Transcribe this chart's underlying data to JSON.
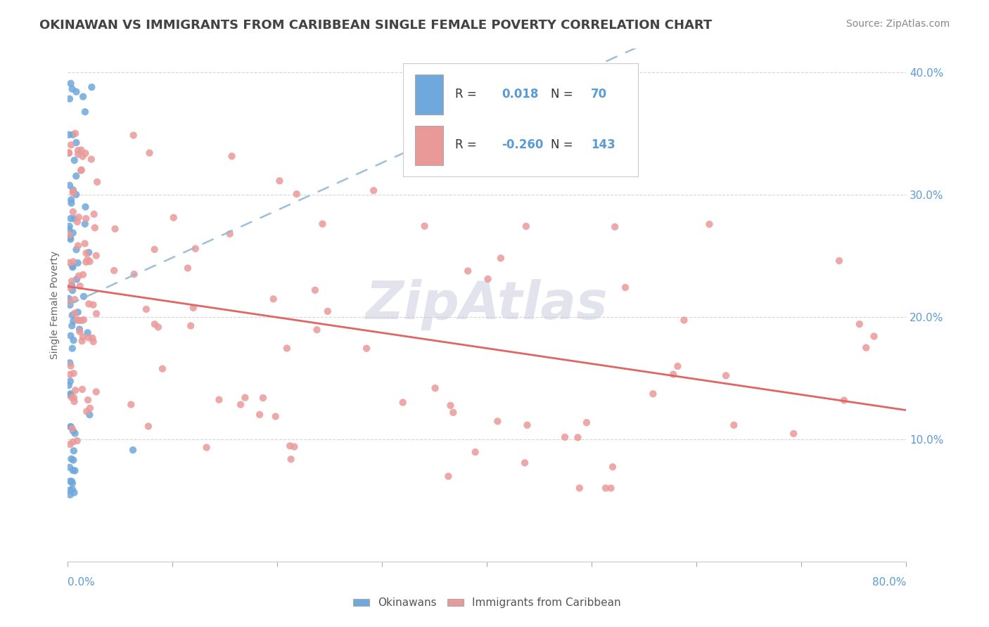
{
  "title": "OKINAWAN VS IMMIGRANTS FROM CARIBBEAN SINGLE FEMALE POVERTY CORRELATION CHART",
  "source": "Source: ZipAtlas.com",
  "ylabel": "Single Female Poverty",
  "legend_R_blue": "0.018",
  "legend_N_blue": "70",
  "legend_R_pink": "-0.260",
  "legend_N_pink": "143",
  "blue_color": "#6fa8dc",
  "pink_color": "#ea9999",
  "trend_blue_color": "#93b8d8",
  "trend_pink_color": "#e06666",
  "watermark_color": "#c8c8dd",
  "title_color": "#434343",
  "source_color": "#888888",
  "axis_label_color": "#5b9bd5",
  "tick_color": "#aaaaaa"
}
